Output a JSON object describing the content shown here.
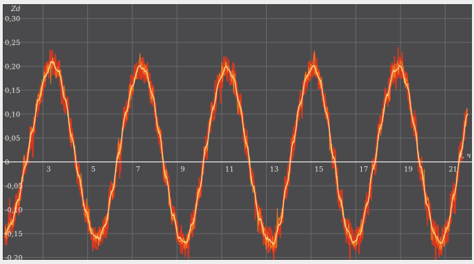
{
  "chart_data": {
    "type": "line",
    "title": "",
    "xlabel": "t, ч",
    "ylabel": "Zd",
    "x_ticks": [
      "3",
      "5",
      "7",
      "9",
      "11",
      "13",
      "15",
      "17",
      "19",
      "21"
    ],
    "x_tick_values": [
      3,
      5,
      7,
      9,
      11,
      13,
      15,
      17,
      19,
      21
    ],
    "y_ticks": [
      "0,30",
      "0,25",
      "0,20",
      "0,15",
      "0,10",
      "0,05",
      "0",
      "-0,05",
      "-0,10",
      "-0,15",
      "-0,20"
    ],
    "y_tick_values": [
      0.3,
      0.25,
      0.2,
      0.15,
      0.1,
      0.05,
      0,
      -0.05,
      -0.1,
      -0.15,
      -0.2
    ],
    "xlim": [
      1.2,
      22.2
    ],
    "ylim": [
      -0.205,
      0.33
    ],
    "grid": true,
    "colors": {
      "background": "#4a4a4c",
      "grid": "#6b6b6e",
      "zero_line": "#e8e8e8",
      "raw_signal": "#e2371d",
      "raw_signal_bright": "#ff8a1c",
      "smoothed": "#f3df93"
    },
    "series": [
      {
        "x": [
          1.3,
          1.6,
          1.9,
          2.2,
          2.5,
          2.8,
          3.1,
          3.4,
          3.7,
          4.0,
          4.3,
          4.6,
          4.9,
          5.2,
          5.5,
          5.8,
          6.1,
          6.4,
          6.7,
          7.0,
          7.3,
          7.6,
          7.9,
          8.2,
          8.5,
          8.8,
          9.1,
          9.4,
          9.7,
          10.0,
          10.3,
          10.6,
          10.9,
          11.2,
          11.5,
          11.8,
          12.1,
          12.4,
          12.7,
          13.0,
          13.3,
          13.6,
          13.9,
          14.2,
          14.5,
          14.8,
          15.1,
          15.4,
          15.7,
          16.0,
          16.3,
          16.6,
          16.9,
          17.2,
          17.5,
          17.8,
          18.1,
          18.4,
          18.7,
          19.0,
          19.3,
          19.6,
          19.9,
          20.2,
          20.5,
          20.8,
          21.1,
          21.4,
          21.7,
          22.0
        ],
        "values": [
          -0.15,
          -0.13,
          -0.08,
          -0.01,
          0.06,
          0.13,
          0.18,
          0.21,
          0.19,
          0.13,
          0.05,
          -0.03,
          -0.1,
          -0.15,
          -0.16,
          -0.13,
          -0.06,
          0.02,
          0.1,
          0.16,
          0.2,
          0.19,
          0.14,
          0.06,
          -0.03,
          -0.11,
          -0.16,
          -0.17,
          -0.13,
          -0.06,
          0.03,
          0.11,
          0.17,
          0.2,
          0.18,
          0.12,
          0.04,
          -0.05,
          -0.12,
          -0.16,
          -0.17,
          -0.13,
          -0.05,
          0.04,
          0.12,
          0.18,
          0.2,
          0.17,
          0.1,
          0.01,
          -0.08,
          -0.14,
          -0.17,
          -0.15,
          -0.09,
          -0.01,
          0.07,
          0.14,
          0.19,
          0.2,
          0.16,
          0.08,
          -0.01,
          -0.09,
          -0.15,
          -0.17,
          -0.14,
          -0.07,
          0.02,
          0.1
        ]
      }
    ]
  }
}
